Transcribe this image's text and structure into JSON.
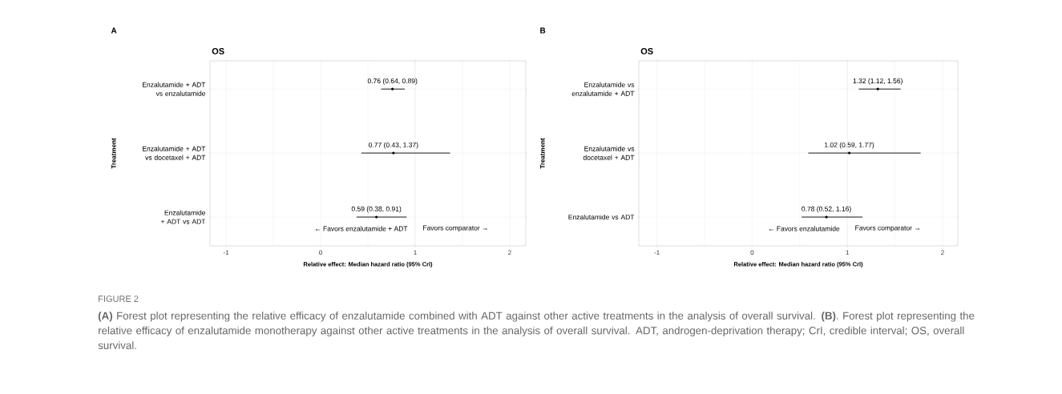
{
  "chart_data": [
    {
      "type": "scatter",
      "orientation": "horizontal",
      "title": "OS",
      "xlabel": "Relative effect: Median hazard ratio (95% CrI)",
      "ylabel": "Treatment",
      "categories": [
        "Enzalutamide + ADT vs enzalutamide",
        "Enzalutamide + ADT vs docetaxel + ADT",
        "Enzalutamide + ADT vs ADT"
      ],
      "values": [
        0.76,
        0.77,
        0.59
      ],
      "errors": [
        [
          0.64,
          0.89
        ],
        [
          0.43,
          1.37
        ],
        [
          0.38,
          0.91
        ]
      ],
      "value_labels": [
        "0.76 (0.64, 0.89)",
        "0.77 (0.43, 1.37)",
        "0.59 (0.38, 0.91)"
      ],
      "color": "#000000",
      "marker": "circle",
      "grid": true,
      "xlim": [
        -1.17,
        2.17
      ],
      "xticks": [
        -1,
        0,
        1,
        2
      ],
      "ref_lines": [
        {
          "axis": "x",
          "value": 1,
          "line_style": "dotted",
          "color": "#808080"
        }
      ],
      "annotations": [
        "A",
        "← Favors enzalutamide + ADT",
        "Favors comparator →",
        "FIGURE 2",
        "**(A)** Forest plot representing the relative efficacy of enzalutamide combined with ADT against other active treatments in the analysis of overall survival. **(B)**. Forest plot representing the relative efficacy of enzalutamide monotherapy against other active treatments in the analysis of overall survival. ADT, androgen-deprivation therapy; CrI, credible interval; OS, overall survival."
      ]
    },
    {
      "type": "scatter",
      "orientation": "horizontal",
      "title": "OS",
      "xlabel": "Relative effect: Median hazard ratio (95% CrI)",
      "ylabel": "Treatment",
      "categories": [
        "Enzalutamide vs enzalutamide + ADT",
        "Enzalutamide vs docetaxel + ADT",
        "Enzalutamide vs ADT"
      ],
      "values": [
        1.32,
        1.02,
        0.78
      ],
      "errors": [
        [
          1.12,
          1.56
        ],
        [
          0.59,
          1.77
        ],
        [
          0.52,
          1.16
        ]
      ],
      "value_labels": [
        "1.32 (1.12, 1.56)",
        "1.02 (0.59, 1.77)",
        "0.78 (0.52, 1.16)"
      ],
      "color": "#000000",
      "marker": "circle",
      "grid": true,
      "xlim": [
        -1.19,
        2.16
      ],
      "xticks": [
        -1,
        0,
        1,
        2
      ],
      "ref_lines": [
        {
          "axis": "x",
          "value": 1,
          "line_style": "dotted",
          "color": "#808080"
        }
      ],
      "annotations": [
        "B",
        "← Favors enzalutamide",
        "Favors comparator →"
      ]
    }
  ]
}
